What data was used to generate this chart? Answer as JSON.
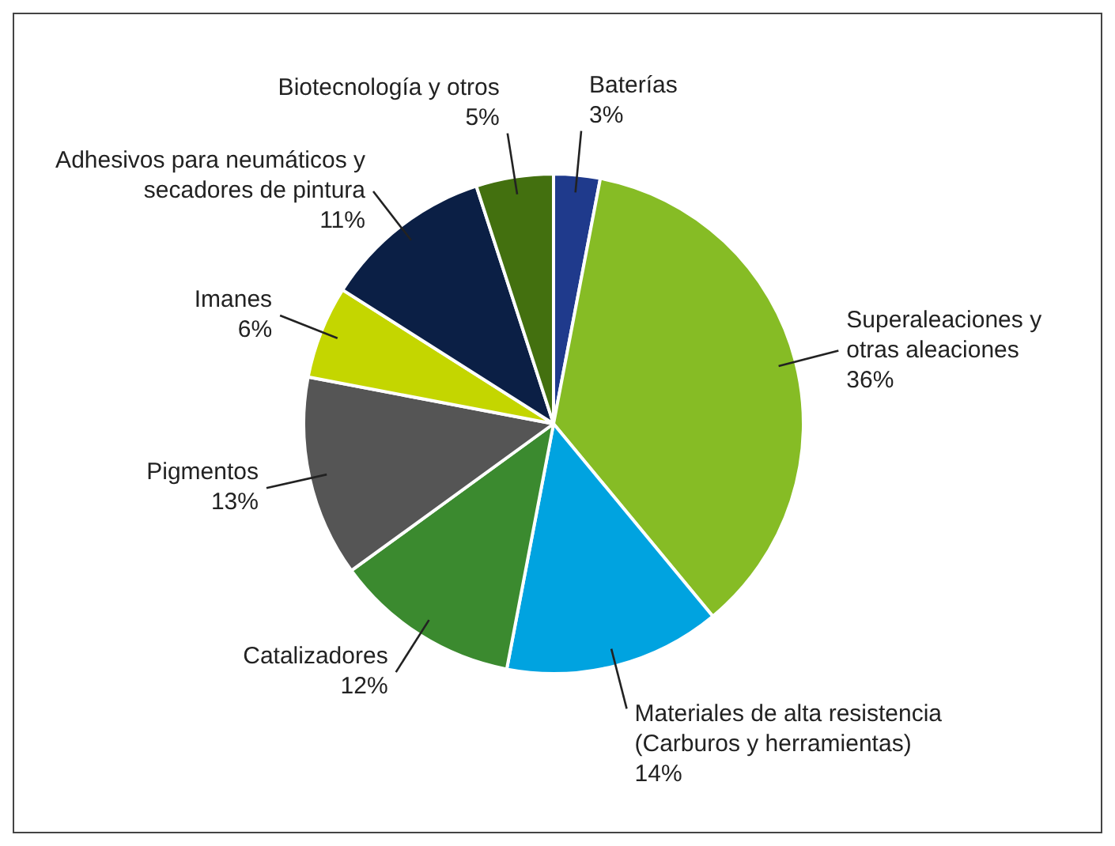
{
  "chart_data": {
    "type": "pie",
    "categories": [
      "Baterías",
      "Superaleaciones y otras aleaciones",
      "Materiales de alta resistencia (Carburos y herramientas)",
      "Catalizadores",
      "Pigmentos",
      "Imanes",
      "Adhesivos para neumáticos y secadores de pintura",
      "Biotecnología y otros"
    ],
    "values": [
      3,
      36,
      14,
      12,
      13,
      6,
      11,
      5
    ],
    "value_labels": [
      "3%",
      "36%",
      "14%",
      "12%",
      "13%",
      "6%",
      "11%",
      "5%"
    ],
    "colors": [
      "#1f3a8c",
      "#86bc25",
      "#00a3e0",
      "#3b8a2f",
      "#555555",
      "#c4d600",
      "#0b1f45",
      "#43700f"
    ],
    "legend": false
  }
}
